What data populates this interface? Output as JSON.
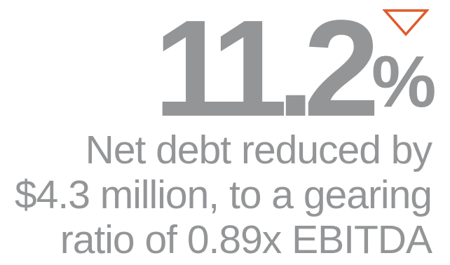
{
  "stat": {
    "value": "11.2",
    "unit": "%",
    "direction_icon": "triangle-down-icon",
    "arrow_color": "#E05A2B",
    "text_color": "#939597"
  },
  "caption": {
    "lines": [
      "Net debt reduced by",
      "$4.3 million, to a gearing",
      "ratio of 0.89x EBITDA"
    ]
  }
}
